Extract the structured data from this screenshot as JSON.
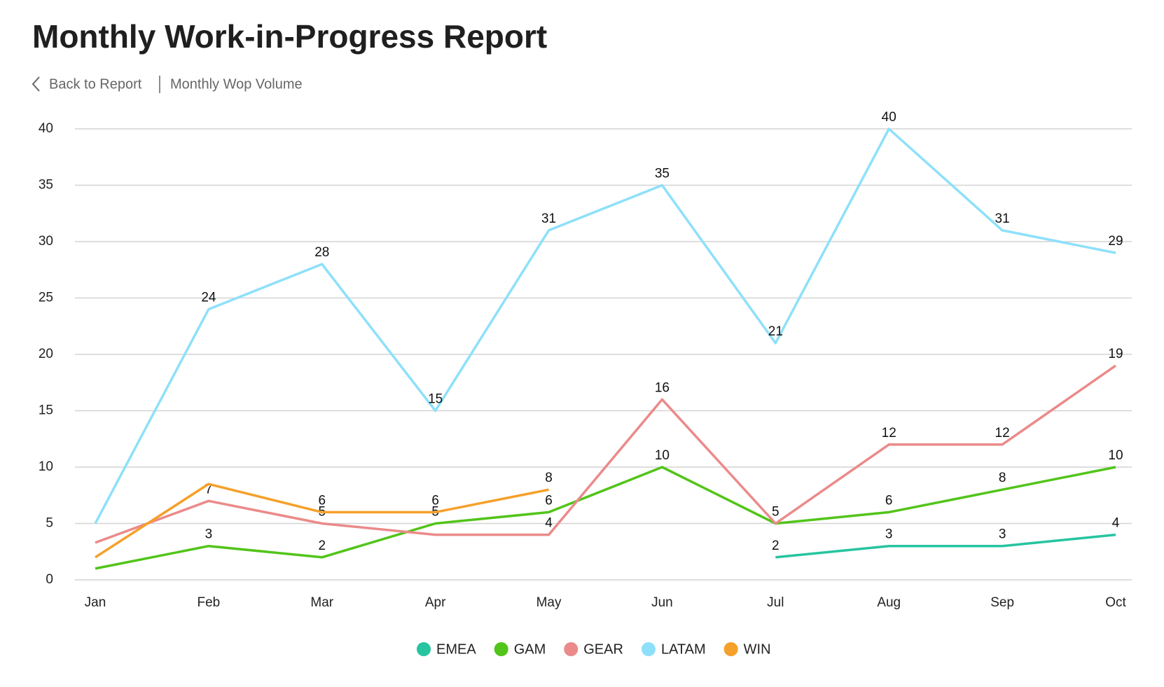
{
  "header": {
    "title": "Monthly Work-in-Progress Report",
    "back": "Back to Report",
    "current": "Monthly Wop Volume"
  },
  "chart_data": {
    "type": "line",
    "categories": [
      "Jan",
      "Feb",
      "Mar",
      "Apr",
      "May",
      "Jun",
      "Jul",
      "Aug",
      "Sep",
      "Oct"
    ],
    "ylim": [
      0,
      40
    ],
    "yticks": [
      0,
      5,
      10,
      15,
      20,
      25,
      30,
      35,
      40
    ],
    "grid": true,
    "legend": "bottom",
    "series": [
      {
        "name": "EMEA",
        "color": "#26c4a0",
        "values": [
          null,
          null,
          null,
          null,
          null,
          null,
          2,
          3,
          3,
          4
        ],
        "value_labels": [
          null,
          null,
          null,
          null,
          null,
          null,
          "2",
          "3",
          "3",
          "4"
        ]
      },
      {
        "name": "GAM",
        "color": "#52c41a",
        "values": [
          1,
          3,
          2,
          5,
          6,
          10,
          5,
          6,
          8,
          10
        ],
        "value_labels": [
          null,
          "3",
          "2",
          "5",
          "6",
          "10",
          "5",
          "6",
          "8",
          "10"
        ]
      },
      {
        "name": "GEAR",
        "color": "#eb8a8a",
        "values": [
          3.3,
          7,
          5,
          4,
          4,
          16,
          5,
          12,
          12,
          19
        ],
        "value_labels": [
          null,
          "7",
          "5",
          null,
          "4",
          "16",
          null,
          "12",
          "12",
          "19"
        ]
      },
      {
        "name": "LATAM",
        "color": "#8ee0fa",
        "values": [
          5,
          24,
          28,
          15,
          31,
          35,
          21,
          40,
          31,
          29
        ],
        "value_labels": [
          null,
          "24",
          "28",
          "15",
          "31",
          "35",
          "21",
          "40",
          "31",
          "29"
        ]
      },
      {
        "name": "WIN",
        "color": "#f5a02a",
        "values": [
          2,
          8.5,
          6,
          6,
          8,
          null,
          null,
          null,
          null,
          null
        ],
        "value_labels": [
          null,
          null,
          "6",
          "6",
          "8",
          null,
          null,
          null,
          null,
          null
        ]
      }
    ]
  }
}
